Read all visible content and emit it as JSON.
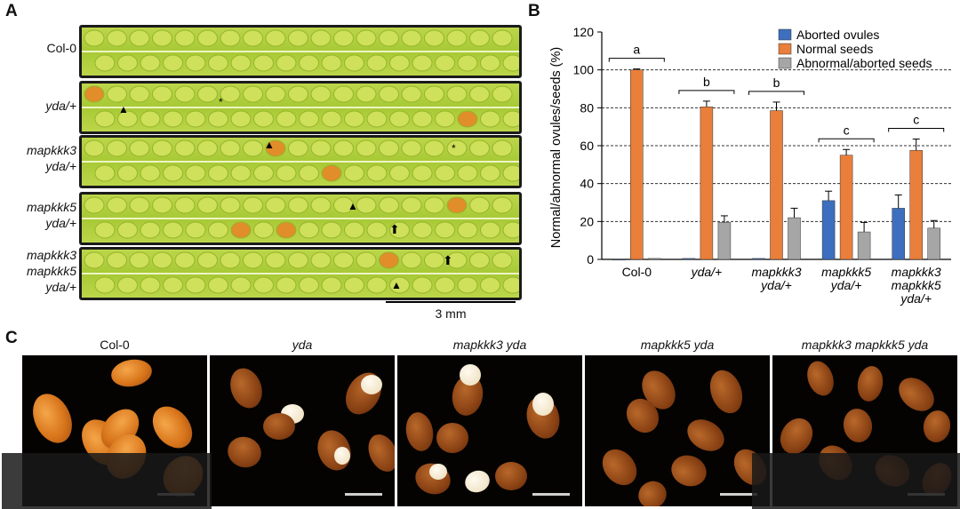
{
  "panel_a": {
    "letter": "A",
    "rows": [
      {
        "line1": "Col-0",
        "line2": "",
        "line3": ""
      },
      {
        "line1": "yda/+",
        "line2": "",
        "line3": ""
      },
      {
        "line1": "mapkkk3",
        "line2": "yda/+",
        "line3": ""
      },
      {
        "line1": "mapkkk5",
        "line2": "yda/+",
        "line3": ""
      },
      {
        "line1": "mapkkk3",
        "line2": "mapkkk5",
        "line3": "yda/+"
      }
    ],
    "scale_bar": "3 mm",
    "arrowhead": "▲",
    "asterisk": "*",
    "arrow": "⬆"
  },
  "panel_b": {
    "letter": "B"
  },
  "chart_data": {
    "type": "bar",
    "categories": [
      "Col-0",
      "yda/+",
      "mapkkk3 yda/+",
      "mapkkk5 yda/+",
      "mapkkk3 mapkkk5 yda/+"
    ],
    "category_lines": [
      [
        "Col-0"
      ],
      [
        "yda/+"
      ],
      [
        "mapkkk3",
        "yda/+"
      ],
      [
        "mapkkk5",
        "yda/+"
      ],
      [
        "mapkkk3",
        "mapkkk5",
        "yda/+"
      ]
    ],
    "series": [
      {
        "name": "Aborted ovules",
        "color": "#3d6fbe",
        "values": [
          0,
          0.5,
          0.5,
          31,
          27
        ],
        "errors": [
          0,
          0,
          0,
          5,
          7
        ]
      },
      {
        "name": "Normal seeds",
        "color": "#e97f3a",
        "values": [
          100,
          80.5,
          78.5,
          55,
          57.5
        ],
        "errors": [
          0.5,
          3,
          4.5,
          3,
          6
        ]
      },
      {
        "name": "Abnormal/aborted seeds",
        "color": "#a6a6a6",
        "values": [
          0.5,
          19.5,
          22,
          14.5,
          16.5
        ],
        "errors": [
          0.5,
          3.5,
          5,
          5,
          4
        ]
      }
    ],
    "significance_letters": [
      "a",
      "b",
      "b",
      "c",
      "c"
    ],
    "ylabel": "Normal/abnormal ovules/seeds (%)",
    "ylim": [
      0,
      120
    ],
    "yticks": [
      0,
      20,
      40,
      60,
      80,
      100,
      120
    ],
    "grid": "dashed horizontal at 20, 40, 60, 80, 100",
    "legend_position": "top-right"
  },
  "panel_c": {
    "letter": "C",
    "titles": [
      "Col-0",
      "yda",
      "mapkkk3 yda",
      "mapkkk5 yda",
      "mapkkk3 mapkkk5 yda"
    ]
  }
}
